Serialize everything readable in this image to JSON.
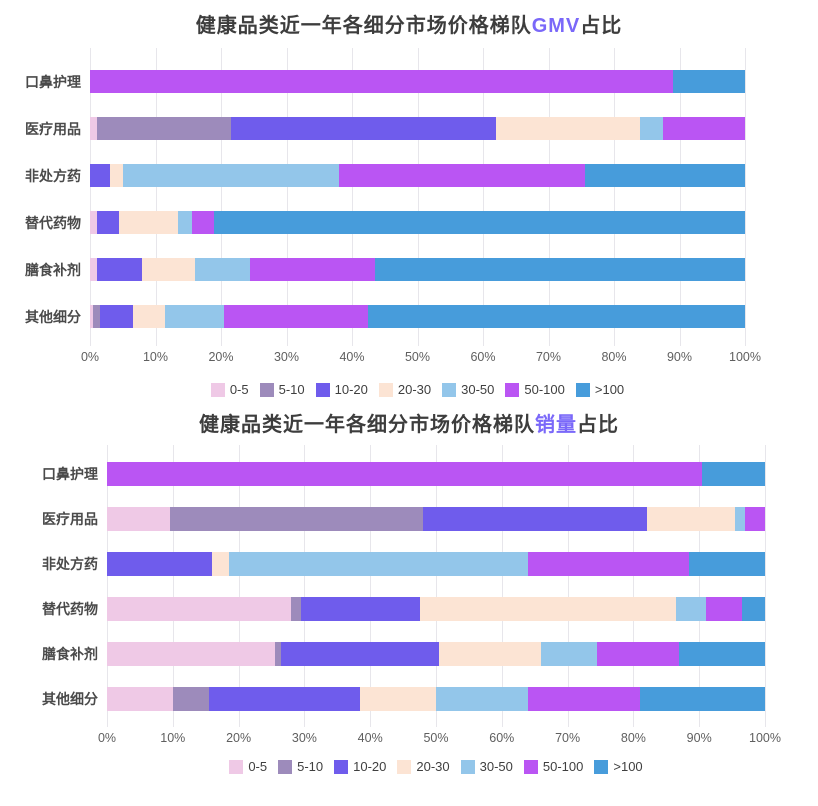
{
  "chart_data": [
    {
      "type": "bar",
      "orientation": "horizontal",
      "stacked": true,
      "title": "健康品类近一年各细分市场价格梯队GMV占比",
      "title_parts": {
        "prefix": "健康品类近一年各细分市场价格梯队",
        "highlight": "GMV",
        "suffix": "占比"
      },
      "highlight_color": "#7a68f9",
      "categories": [
        "口鼻护理",
        "医疗用品",
        "非处方药",
        "替代药物",
        "膳食补剂",
        "其他细分"
      ],
      "series": [
        {
          "name": "0-5",
          "color": "#efc9e6",
          "values": [
            0,
            1,
            0,
            1,
            1,
            0.5
          ]
        },
        {
          "name": "5-10",
          "color": "#9d8bbb",
          "values": [
            0,
            20.5,
            0,
            0,
            0,
            1
          ]
        },
        {
          "name": "10-20",
          "color": "#6f5cec",
          "values": [
            0,
            40.5,
            3,
            3.5,
            7,
            5
          ]
        },
        {
          "name": "20-30",
          "color": "#fce4d4",
          "values": [
            0,
            22,
            2,
            9,
            8,
            5
          ]
        },
        {
          "name": "30-50",
          "color": "#93c6ea",
          "values": [
            0,
            3.5,
            33,
            2,
            8.5,
            9
          ]
        },
        {
          "name": "50-100",
          "color": "#ba55f3",
          "values": [
            89,
            12.5,
            37.5,
            3.5,
            19,
            22
          ]
        },
        {
          "name": ">100",
          "color": "#479cdb",
          "values": [
            11,
            0,
            24.5,
            81,
            56.5,
            57.5
          ]
        }
      ],
      "x_ticks": [
        "0%",
        "10%",
        "20%",
        "30%",
        "40%",
        "50%",
        "60%",
        "70%",
        "80%",
        "90%",
        "100%"
      ],
      "xlim": [
        0,
        100
      ],
      "grid": true,
      "legend_position": "bottom"
    },
    {
      "type": "bar",
      "orientation": "horizontal",
      "stacked": true,
      "title": "健康品类近一年各细分市场价格梯队销量占比",
      "title_parts": {
        "prefix": "健康品类近一年各细分市场价格梯队",
        "highlight": "销量",
        "suffix": "占比"
      },
      "highlight_color": "#7a68f9",
      "categories": [
        "口鼻护理",
        "医疗用品",
        "非处方药",
        "替代药物",
        "膳食补剂",
        "其他细分"
      ],
      "series": [
        {
          "name": "0-5",
          "color": "#efc9e6",
          "values": [
            0,
            9.5,
            0,
            28,
            25.5,
            10
          ]
        },
        {
          "name": "5-10",
          "color": "#9d8bbb",
          "values": [
            0,
            38.5,
            0,
            1.5,
            1,
            5.5
          ]
        },
        {
          "name": "10-20",
          "color": "#6f5cec",
          "values": [
            0,
            34,
            16,
            18,
            24,
            23
          ]
        },
        {
          "name": "20-30",
          "color": "#fce4d4",
          "values": [
            0,
            13.5,
            2.5,
            39,
            15.5,
            11.5
          ]
        },
        {
          "name": "30-50",
          "color": "#93c6ea",
          "values": [
            0,
            1.5,
            45.5,
            4.5,
            8.5,
            14
          ]
        },
        {
          "name": "50-100",
          "color": "#ba55f3",
          "values": [
            90.5,
            3,
            24.5,
            5.5,
            12.5,
            17
          ]
        },
        {
          "name": ">100",
          "color": "#479cdb",
          "values": [
            9.5,
            0,
            11.5,
            3.5,
            13,
            19
          ]
        }
      ],
      "x_ticks": [
        "0%",
        "10%",
        "20%",
        "30%",
        "40%",
        "50%",
        "60%",
        "70%",
        "80%",
        "90%",
        "100%"
      ],
      "xlim": [
        0,
        100
      ],
      "grid": true,
      "legend_position": "bottom"
    }
  ]
}
